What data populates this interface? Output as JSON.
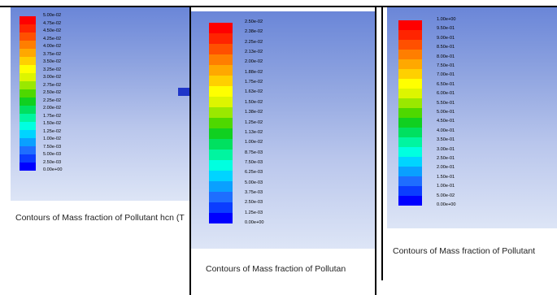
{
  "colormap": [
    "#0000ff",
    "#0b3dff",
    "#1e6eff",
    "#0aa0ff",
    "#00d4ff",
    "#00ffe0",
    "#00f5a0",
    "#00e060",
    "#10d020",
    "#4ed800",
    "#9ae800",
    "#ddf500",
    "#ffff00",
    "#ffd000",
    "#ffa800",
    "#ff7e00",
    "#ff5000",
    "#ff2400",
    "#ff0000"
  ],
  "panels": [
    {
      "labels": [
        "5.00e-02",
        "4.75e-02",
        "4.50e-02",
        "4.25e-02",
        "4.00e-02",
        "3.75e-02",
        "3.50e-02",
        "3.25e-02",
        "3.00e-02",
        "2.75e-02",
        "2.50e-02",
        "2.25e-02",
        "2.00e-02",
        "1.75e-02",
        "1.50e-02",
        "1.25e-02",
        "1.00e-02",
        "7.50e-03",
        "5.00e-03",
        "2.50e-03",
        "0.00e+00"
      ],
      "caption": "Contours of Mass fraction of Pollutant hcn  (T"
    },
    {
      "labels": [
        "2.50e-02",
        "2.38e-02",
        "2.25e-02",
        "2.13e-02",
        "2.00e-02",
        "1.88e-02",
        "1.75e-02",
        "1.63e-02",
        "1.50e-02",
        "1.38e-02",
        "1.25e-02",
        "1.13e-02",
        "1.00e-02",
        "8.75e-03",
        "7.50e-03",
        "6.25e-03",
        "5.00e-03",
        "3.75e-03",
        "2.50e-03",
        "1.25e-03",
        "0.00e+00"
      ],
      "caption": "Contours of Mass fraction of Pollutan"
    },
    {
      "labels": [
        "1.00e+00",
        "9.50e-01",
        "9.00e-01",
        "8.50e-01",
        "8.00e-01",
        "7.50e-01",
        "7.00e-01",
        "6.50e-01",
        "6.00e-01",
        "5.50e-01",
        "5.00e-01",
        "4.50e-01",
        "4.00e-01",
        "3.50e-01",
        "3.00e-01",
        "2.50e-01",
        "2.00e-01",
        "1.50e-01",
        "1.00e-01",
        "5.00e-02",
        "0.00e+00"
      ],
      "caption": "Contours of Mass fraction of Pollutant"
    }
  ]
}
